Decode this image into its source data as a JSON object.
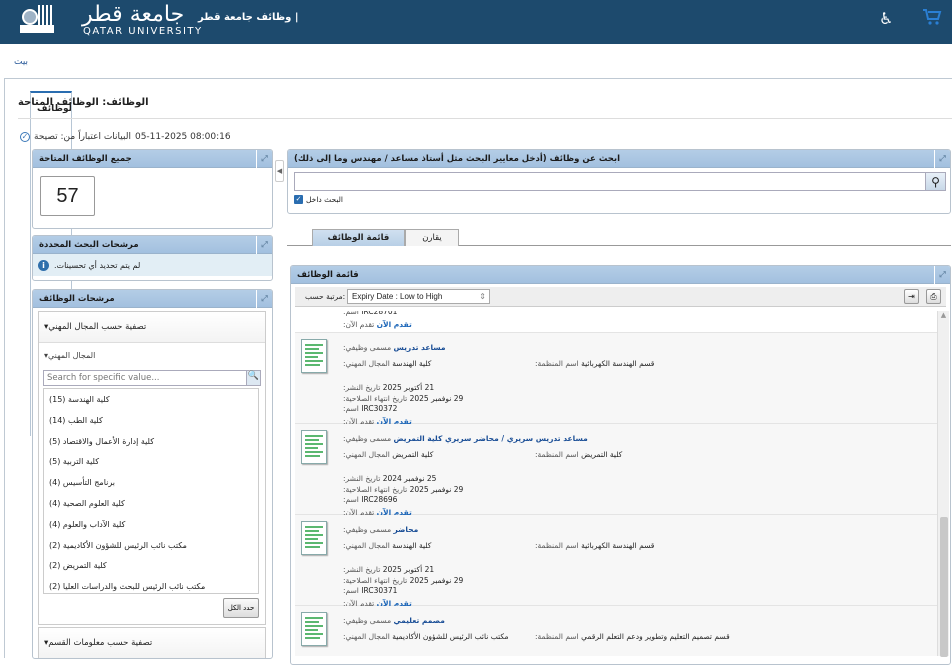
{
  "header": {
    "logo_ar": "جامعة قطر",
    "logo_en": "QATAR UNIVERSITY",
    "title": "| وظائف جامعة قطر",
    "accessibility_icon": "wheelchair-icon",
    "cart_icon": "cart-icon",
    "bg_color": "#1d4a6d"
  },
  "tabs": [
    {
      "label": "بيت"
    },
    {
      "label": "الوظائف"
    }
  ],
  "page_title": "الوظائف: الوظائف المتاحة",
  "status": {
    "text": "البيانات اعتباراً من: تصيحة",
    "timestamp": "05-11-2025 08:00:16"
  },
  "all_jobs": {
    "title": "جميع الوظائف المتاحة",
    "count": "57"
  },
  "selected_filters": {
    "title": "مرشحات البحث المحددة",
    "message": "لم يتم تحديد أي تحسينات."
  },
  "job_filters": {
    "title": "مرشحات الوظائف",
    "section1": "تصفية حسب المجال المهني",
    "subsection": "المجال المهني",
    "search_placeholder": "Search for specific value...",
    "items": [
      {
        "count": "(15)",
        "label": "كلية الهندسة"
      },
      {
        "count": "(14)",
        "label": "كلية الطب"
      },
      {
        "count": "(5)",
        "label": "كلية إدارة الأعمال والاقتصاد"
      },
      {
        "count": "(5)",
        "label": "كلية التربية"
      },
      {
        "count": "(4)",
        "label": "برنامج التأسيس"
      },
      {
        "count": "(4)",
        "label": "كلية العلوم الصحية"
      },
      {
        "count": "(4)",
        "label": "كلية الآداب والعلوم"
      },
      {
        "count": "(2)",
        "label": "مكتب نائب الرئيس للشؤون الأكاديمية"
      },
      {
        "count": "(2)",
        "label": "كلية التمريض"
      },
      {
        "count": "(2)",
        "label": "مكتب نائب الرئيس للبحث والدراسات العليا"
      }
    ],
    "select_all": "حدد الكل",
    "section2": "تصفية حسب معلومات القسم"
  },
  "search": {
    "title": "ابحث عن وظائف (أدخل معايير البحث مثل أستاذ مساعد / مهندس وما إلى ذلك)",
    "value": "",
    "within_label": "البحث داخل",
    "within_checked": true
  },
  "view_tabs": [
    {
      "label": "قائمة الوظائف",
      "active": true
    },
    {
      "label": "يقارن",
      "active": false
    }
  ],
  "job_list": {
    "title": "قائمة الوظائف",
    "sort_label": "مرتبة حسب:",
    "sort_value": "Expiry Date : Low to High",
    "labels": {
      "title": "مسمى وظيفي:",
      "field": "المجال المهني:",
      "org": "اسم المنظمة:",
      "posted": "تاريخ النشر:",
      "expiry": "تاريخ انتهاء الصلاحية:",
      "id": "اسم:",
      "apply": "تقدم الآن:",
      "apply_link": "تقدم الآن"
    },
    "partial": {
      "id": "IRC28701"
    },
    "jobs": [
      {
        "title": "مساعد تدريس",
        "field": "كلية الهندسة",
        "org": "قسم الهندسة الكهربائية",
        "posted": "21 أكتوبر 2025",
        "expiry": "29 نوفمبر 2025",
        "id": "IRC30372"
      },
      {
        "title": "مساعد تدريس سريري / محاضر سريري كلية التمريض",
        "field": "كلية التمريض",
        "org": "كلية التمريض",
        "posted": "25 نوفمبر 2024",
        "expiry": "29 نوفمبر 2025",
        "id": "IRC28696"
      },
      {
        "title": "محاضر",
        "field": "كلية الهندسة",
        "org": "قسم الهندسة الكهربائية",
        "posted": "21 أكتوبر 2025",
        "expiry": "29 نوفمبر 2025",
        "id": "IRC30371"
      },
      {
        "title": "مصمم تعليمي",
        "field": "مكتب نائب الرئيس للشؤون الأكاديمية",
        "org": "قسم تصميم التعليم وتطوير ودعم التعلم الرقمي"
      }
    ]
  }
}
